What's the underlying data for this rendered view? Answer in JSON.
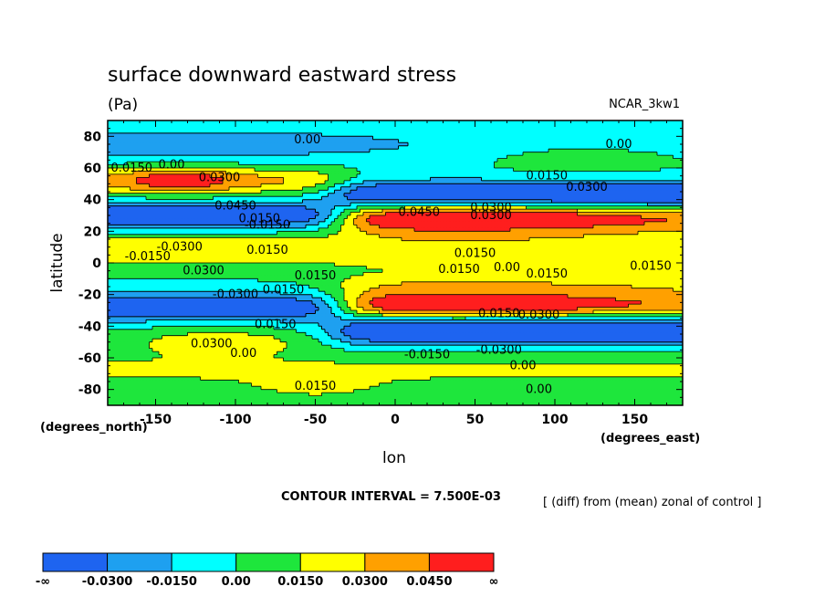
{
  "chart_data": {
    "type": "heatmap",
    "title": "surface downward eastward stress",
    "units": "(Pa)",
    "dataset": "NCAR_3kw1",
    "xlabel": "lon",
    "ylabel": "latitude",
    "x_units": "(degrees_east)",
    "y_units": "(degrees_north)",
    "xlim": [
      -180,
      180
    ],
    "ylim": [
      -90,
      90
    ],
    "x_ticks": [
      -150,
      -100,
      -50,
      0,
      50,
      100,
      150
    ],
    "y_ticks": [
      80,
      60,
      40,
      20,
      0,
      -20,
      -40,
      -60,
      -80
    ],
    "contour_interval": "CONTOUR INTERVAL = 7.500E-03",
    "note": "[ (diff) from (mean) zonal of control ]",
    "levels": [
      -0.03,
      -0.015,
      0,
      0.015,
      0.03,
      0.045
    ],
    "legend": {
      "labels": [
        "-∞",
        "-0.0300",
        "-0.0150",
        "0.00",
        "0.0150",
        "0.0300",
        "0.0450",
        "∞"
      ],
      "colors": [
        "#1e64f0",
        "#1ea0f0",
        "#00ffff",
        "#1ee63c",
        "#ffff00",
        "#ffa000",
        "#ff1e1e"
      ]
    },
    "contour_labels": [
      {
        "text": "0.00",
        "lon": -55,
        "lat": 78
      },
      {
        "text": "0.00",
        "lon": 140,
        "lat": 75
      },
      {
        "text": "0.0150",
        "lon": -165,
        "lat": 60
      },
      {
        "text": "0.00",
        "lon": -140,
        "lat": 62
      },
      {
        "text": "0.0300",
        "lon": -110,
        "lat": 54
      },
      {
        "text": "0.0150",
        "lon": 95,
        "lat": 55
      },
      {
        "text": "0.0300",
        "lon": 120,
        "lat": 48
      },
      {
        "text": "0.0450",
        "lon": -100,
        "lat": 36
      },
      {
        "text": "0.0150",
        "lon": -85,
        "lat": 28
      },
      {
        "text": "-0.0150",
        "lon": -80,
        "lat": 24
      },
      {
        "text": "0.0450",
        "lon": 15,
        "lat": 32
      },
      {
        "text": "0.0300",
        "lon": 60,
        "lat": 35
      },
      {
        "text": "0.0300",
        "lon": 60,
        "lat": 30
      },
      {
        "text": "-0.0300",
        "lon": -135,
        "lat": 10
      },
      {
        "text": "0.0150",
        "lon": -80,
        "lat": 8
      },
      {
        "text": "-0.0150",
        "lon": -155,
        "lat": 4
      },
      {
        "text": "0.0150",
        "lon": 50,
        "lat": 6
      },
      {
        "text": "0.0300",
        "lon": -120,
        "lat": -5
      },
      {
        "text": "0.0150",
        "lon": -50,
        "lat": -8
      },
      {
        "text": "0.0150",
        "lon": 40,
        "lat": -4
      },
      {
        "text": "0.00",
        "lon": 70,
        "lat": -3
      },
      {
        "text": "0.0150",
        "lon": 95,
        "lat": -7
      },
      {
        "text": "0.0150",
        "lon": 160,
        "lat": -2
      },
      {
        "text": "-0.0300",
        "lon": -100,
        "lat": -20
      },
      {
        "text": "0.0150",
        "lon": -70,
        "lat": -17
      },
      {
        "text": "0.0150",
        "lon": 65,
        "lat": -32
      },
      {
        "text": "0.0300",
        "lon": 90,
        "lat": -33
      },
      {
        "text": "0.0150",
        "lon": -75,
        "lat": -39
      },
      {
        "text": "0.0300",
        "lon": -115,
        "lat": -51
      },
      {
        "text": "0.00",
        "lon": -95,
        "lat": -57
      },
      {
        "text": "-0.0150",
        "lon": 20,
        "lat": -58
      },
      {
        "text": "-0.0300",
        "lon": 65,
        "lat": -55
      },
      {
        "text": "0.00",
        "lon": 80,
        "lat": -65
      },
      {
        "text": "0.0150",
        "lon": -50,
        "lat": -78
      },
      {
        "text": "0.00",
        "lon": 90,
        "lat": -80
      }
    ]
  }
}
